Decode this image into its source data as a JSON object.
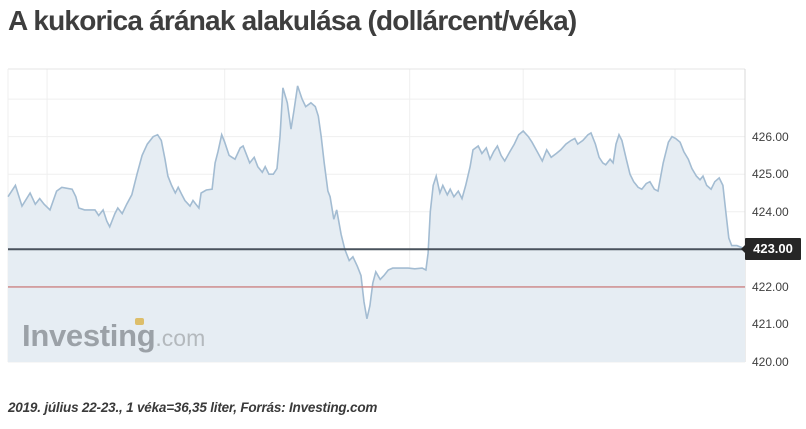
{
  "page": {
    "title": "A kukorica árának alakulása (dollárcent/véka)",
    "footnote": "2019. július 22-23., 1 véka=36,35 liter, Forrás: Investing.com",
    "background": "#ffffff"
  },
  "watermark": {
    "brand": "Investing",
    "tld": ".com"
  },
  "colors": {
    "title_text": "#3e3e3e",
    "footnote_text": "#3a3a3a",
    "tick_label_text": "#3f3f3f",
    "grid": "#efefef",
    "plot_border": "#e4e4e4",
    "axis_line": "#d8d8d8",
    "area_fill": "#e6edf3",
    "area_line": "#a3bcd2",
    "current_price_line": "#49525c",
    "reference_line": "#cc8383",
    "badge_bg": "#262626",
    "badge_text": "#ffffff",
    "watermark_brand": "#9ba1a7",
    "watermark_tld": "#b4b9bd",
    "watermark_dot": "#ddbe6a"
  },
  "chart_data": {
    "type": "area",
    "title": "A kukorica árának alakulása (dollárcent/véka)",
    "unit": "dollárcent/véka",
    "period_shown": "2019. július 22-23.",
    "legend": "none",
    "grid": "on",
    "x_axis": {
      "tick_labels_visible": false,
      "gridline_positions_rel": [
        0.053,
        0.294,
        0.545,
        0.699,
        0.905
      ]
    },
    "y_axis": {
      "side": "right",
      "ylim": [
        420.0,
        427.8
      ],
      "gridline_values": [
        420,
        421,
        422,
        423,
        424,
        425,
        426,
        427
      ],
      "ticks": [
        {
          "value": 426,
          "label": "426.00"
        },
        {
          "value": 425,
          "label": "425.00"
        },
        {
          "value": 424,
          "label": "424.00"
        },
        {
          "value": 423,
          "label": null
        },
        {
          "value": 422,
          "label": "422.00"
        },
        {
          "value": 421,
          "label": "421.00"
        },
        {
          "value": 420,
          "label": "420.00"
        }
      ]
    },
    "current_price": {
      "value": 423.0,
      "label": "423.00"
    },
    "reference_line": {
      "value": 422.0
    },
    "points": [
      [
        0.0,
        424.4
      ],
      [
        0.01,
        424.7
      ],
      [
        0.019,
        424.15
      ],
      [
        0.03,
        424.5
      ],
      [
        0.037,
        424.2
      ],
      [
        0.043,
        424.35
      ],
      [
        0.049,
        424.2
      ],
      [
        0.057,
        424.05
      ],
      [
        0.066,
        424.55
      ],
      [
        0.073,
        424.65
      ],
      [
        0.087,
        424.6
      ],
      [
        0.092,
        424.4
      ],
      [
        0.096,
        424.1
      ],
      [
        0.104,
        424.05
      ],
      [
        0.118,
        424.05
      ],
      [
        0.123,
        423.9
      ],
      [
        0.129,
        424.05
      ],
      [
        0.134,
        423.75
      ],
      [
        0.138,
        423.6
      ],
      [
        0.145,
        423.95
      ],
      [
        0.149,
        424.1
      ],
      [
        0.155,
        423.95
      ],
      [
        0.161,
        424.2
      ],
      [
        0.168,
        424.45
      ],
      [
        0.175,
        425.0
      ],
      [
        0.182,
        425.5
      ],
      [
        0.189,
        425.8
      ],
      [
        0.197,
        426.0
      ],
      [
        0.203,
        426.05
      ],
      [
        0.208,
        425.9
      ],
      [
        0.213,
        425.4
      ],
      [
        0.217,
        424.95
      ],
      [
        0.222,
        424.7
      ],
      [
        0.227,
        424.5
      ],
      [
        0.231,
        424.65
      ],
      [
        0.236,
        424.45
      ],
      [
        0.24,
        424.3
      ],
      [
        0.247,
        424.15
      ],
      [
        0.251,
        424.3
      ],
      [
        0.255,
        424.2
      ],
      [
        0.259,
        424.1
      ],
      [
        0.262,
        424.5
      ],
      [
        0.269,
        424.58
      ],
      [
        0.277,
        424.6
      ],
      [
        0.281,
        425.3
      ],
      [
        0.285,
        425.6
      ],
      [
        0.29,
        426.05
      ],
      [
        0.294,
        425.85
      ],
      [
        0.3,
        425.5
      ],
      [
        0.304,
        425.45
      ],
      [
        0.308,
        425.4
      ],
      [
        0.315,
        425.7
      ],
      [
        0.319,
        425.75
      ],
      [
        0.324,
        425.5
      ],
      [
        0.328,
        425.3
      ],
      [
        0.334,
        425.45
      ],
      [
        0.339,
        425.2
      ],
      [
        0.345,
        425.05
      ],
      [
        0.349,
        425.2
      ],
      [
        0.354,
        425.0
      ],
      [
        0.36,
        425.0
      ],
      [
        0.365,
        425.15
      ],
      [
        0.369,
        426.0
      ],
      [
        0.373,
        427.3
      ],
      [
        0.379,
        426.9
      ],
      [
        0.384,
        426.2
      ],
      [
        0.388,
        426.7
      ],
      [
        0.393,
        427.35
      ],
      [
        0.399,
        427.0
      ],
      [
        0.404,
        426.8
      ],
      [
        0.411,
        426.9
      ],
      [
        0.417,
        426.8
      ],
      [
        0.421,
        426.55
      ],
      [
        0.425,
        426.0
      ],
      [
        0.429,
        425.3
      ],
      [
        0.434,
        424.55
      ],
      [
        0.437,
        424.4
      ],
      [
        0.442,
        423.8
      ],
      [
        0.446,
        424.05
      ],
      [
        0.452,
        423.4
      ],
      [
        0.457,
        423.0
      ],
      [
        0.463,
        422.7
      ],
      [
        0.468,
        422.8
      ],
      [
        0.474,
        422.55
      ],
      [
        0.479,
        422.3
      ],
      [
        0.483,
        421.6
      ],
      [
        0.487,
        421.15
      ],
      [
        0.491,
        421.5
      ],
      [
        0.495,
        422.1
      ],
      [
        0.499,
        422.4
      ],
      [
        0.505,
        422.2
      ],
      [
        0.51,
        422.3
      ],
      [
        0.516,
        422.45
      ],
      [
        0.522,
        422.5
      ],
      [
        0.532,
        422.5
      ],
      [
        0.543,
        422.5
      ],
      [
        0.552,
        422.48
      ],
      [
        0.562,
        422.5
      ],
      [
        0.567,
        422.45
      ],
      [
        0.57,
        422.9
      ],
      [
        0.573,
        424.0
      ],
      [
        0.577,
        424.7
      ],
      [
        0.581,
        424.95
      ],
      [
        0.586,
        424.5
      ],
      [
        0.59,
        424.7
      ],
      [
        0.596,
        424.45
      ],
      [
        0.6,
        424.6
      ],
      [
        0.605,
        424.4
      ],
      [
        0.611,
        424.55
      ],
      [
        0.616,
        424.35
      ],
      [
        0.621,
        424.7
      ],
      [
        0.627,
        425.2
      ],
      [
        0.631,
        425.65
      ],
      [
        0.638,
        425.75
      ],
      [
        0.643,
        425.55
      ],
      [
        0.649,
        425.7
      ],
      [
        0.654,
        425.4
      ],
      [
        0.659,
        425.6
      ],
      [
        0.664,
        425.75
      ],
      [
        0.669,
        425.5
      ],
      [
        0.674,
        425.35
      ],
      [
        0.681,
        425.6
      ],
      [
        0.687,
        425.8
      ],
      [
        0.693,
        426.05
      ],
      [
        0.699,
        426.15
      ],
      [
        0.706,
        426.0
      ],
      [
        0.711,
        425.85
      ],
      [
        0.718,
        425.6
      ],
      [
        0.725,
        425.35
      ],
      [
        0.731,
        425.65
      ],
      [
        0.737,
        425.45
      ],
      [
        0.744,
        425.55
      ],
      [
        0.75,
        425.65
      ],
      [
        0.757,
        425.8
      ],
      [
        0.764,
        425.9
      ],
      [
        0.769,
        425.95
      ],
      [
        0.773,
        425.8
      ],
      [
        0.78,
        425.9
      ],
      [
        0.787,
        426.05
      ],
      [
        0.791,
        426.1
      ],
      [
        0.797,
        425.8
      ],
      [
        0.802,
        425.45
      ],
      [
        0.807,
        425.3
      ],
      [
        0.811,
        425.25
      ],
      [
        0.817,
        425.4
      ],
      [
        0.821,
        425.3
      ],
      [
        0.825,
        425.8
      ],
      [
        0.829,
        426.05
      ],
      [
        0.833,
        425.9
      ],
      [
        0.839,
        425.4
      ],
      [
        0.844,
        425.0
      ],
      [
        0.849,
        424.8
      ],
      [
        0.855,
        424.65
      ],
      [
        0.86,
        424.6
      ],
      [
        0.866,
        424.75
      ],
      [
        0.871,
        424.8
      ],
      [
        0.877,
        424.6
      ],
      [
        0.882,
        424.55
      ],
      [
        0.889,
        425.3
      ],
      [
        0.896,
        425.85
      ],
      [
        0.901,
        426.0
      ],
      [
        0.906,
        425.95
      ],
      [
        0.912,
        425.85
      ],
      [
        0.917,
        425.6
      ],
      [
        0.923,
        425.4
      ],
      [
        0.928,
        425.15
      ],
      [
        0.934,
        424.95
      ],
      [
        0.939,
        424.85
      ],
      [
        0.943,
        424.95
      ],
      [
        0.948,
        424.7
      ],
      [
        0.954,
        424.6
      ],
      [
        0.959,
        424.8
      ],
      [
        0.965,
        424.9
      ],
      [
        0.97,
        424.7
      ],
      [
        0.974,
        424.0
      ],
      [
        0.978,
        423.3
      ],
      [
        0.982,
        423.1
      ],
      [
        0.989,
        423.1
      ],
      [
        0.995,
        423.05
      ],
      [
        1.0,
        423.0
      ]
    ]
  }
}
